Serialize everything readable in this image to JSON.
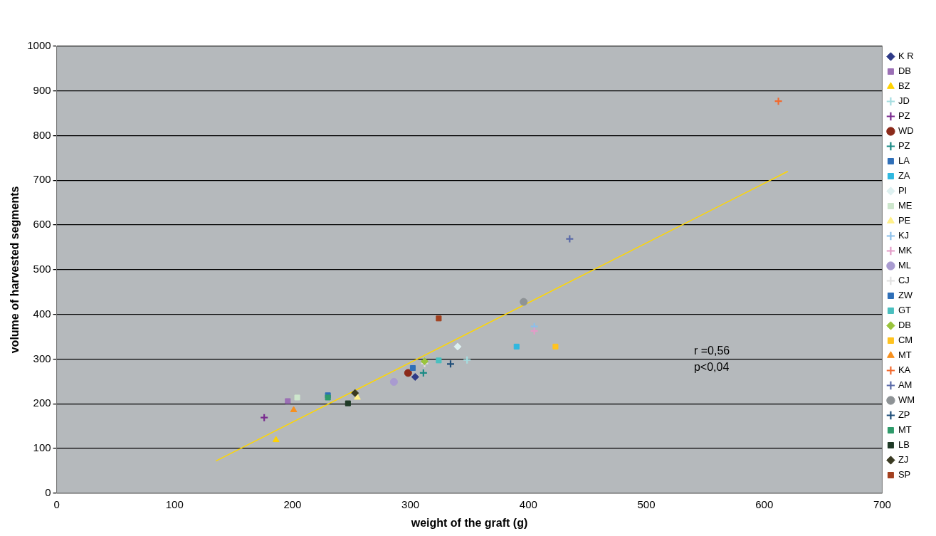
{
  "chart_data": {
    "type": "scatter",
    "xlabel": "weight of the graft (g)",
    "ylabel": "volume of harvested segments",
    "xlim": [
      0,
      700
    ],
    "xticks": [
      0,
      100,
      200,
      300,
      400,
      500,
      600,
      700
    ],
    "ylim": [
      0,
      1000
    ],
    "yticks": [
      0,
      100,
      200,
      300,
      400,
      500,
      600,
      700,
      800,
      900,
      1000
    ],
    "grid": "y",
    "legend": "right",
    "annotations": [
      "r =0,56",
      "p<0,04"
    ],
    "series": [
      {
        "name": "K R",
        "color": "#2e3a87",
        "marker": "diamond",
        "x": [
          304
        ],
        "values": [
          260
        ]
      },
      {
        "name": "DB",
        "color": "#9b6fb5",
        "marker": "square",
        "x": [
          196
        ],
        "values": [
          206
        ]
      },
      {
        "name": "BZ",
        "color": "#ffd200",
        "marker": "triangle",
        "x": [
          186
        ],
        "values": [
          119
        ]
      },
      {
        "name": "JD",
        "color": "#a6dde0",
        "marker": "cross",
        "x": [
          348
        ],
        "values": [
          298
        ]
      },
      {
        "name": "PZ",
        "color": "#7a2b8f",
        "marker": "cross",
        "x": [
          176
        ],
        "values": [
          169
        ]
      },
      {
        "name": "WD",
        "color": "#8b2a1a",
        "marker": "circle",
        "x": [
          298
        ],
        "values": [
          269
        ]
      },
      {
        "name": "PZ",
        "color": "#1a8a85",
        "marker": "cross",
        "x": [
          311
        ],
        "values": [
          269
        ]
      },
      {
        "name": "LA",
        "color": "#2f6fb8",
        "marker": "square",
        "x": [
          302
        ],
        "values": [
          280
        ]
      },
      {
        "name": "ZA",
        "color": "#2fb8e0",
        "marker": "square",
        "x": [
          390
        ],
        "values": [
          328
        ]
      },
      {
        "name": "PI",
        "color": "#ddf0f0",
        "marker": "diamond",
        "x": [
          340
        ],
        "values": [
          328
        ]
      },
      {
        "name": "ME",
        "color": "#cde6cc",
        "marker": "square",
        "x": [
          204
        ],
        "values": [
          214
        ]
      },
      {
        "name": "PE",
        "color": "#fff08a",
        "marker": "triangle",
        "x": [
          255
        ],
        "values": [
          214
        ]
      },
      {
        "name": "KJ",
        "color": "#8cc0ea",
        "marker": "cross",
        "x": [
          405
        ],
        "values": [
          373
        ]
      },
      {
        "name": "MK",
        "color": "#e39cc8",
        "marker": "cross",
        "x": [
          405
        ],
        "values": [
          363
        ]
      },
      {
        "name": "ML",
        "color": "#a99bd0",
        "marker": "circle",
        "x": [
          286
        ],
        "values": [
          249
        ]
      },
      {
        "name": "CJ",
        "color": "#e0e0e0",
        "marker": "cross",
        "x": [
          312
        ],
        "values": [
          290
        ]
      },
      {
        "name": "ZW",
        "color": "#2f6fb8",
        "marker": "square",
        "x": [
          230
        ],
        "values": [
          219
        ]
      },
      {
        "name": "GT",
        "color": "#4abfbf",
        "marker": "square",
        "x": [
          324
        ],
        "values": [
          297
        ]
      },
      {
        "name": "DB",
        "color": "#9ac43c",
        "marker": "diamond",
        "x": [
          312
        ],
        "values": [
          295
        ]
      },
      {
        "name": "CM",
        "color": "#ffc31f",
        "marker": "square",
        "x": [
          423
        ],
        "values": [
          328
        ]
      },
      {
        "name": "MT",
        "color": "#f7901e",
        "marker": "triangle",
        "x": [
          201
        ],
        "values": [
          186
        ]
      },
      {
        "name": "KA",
        "color": "#f26a2e",
        "marker": "cross",
        "x": [
          612
        ],
        "values": [
          877
        ]
      },
      {
        "name": "AM",
        "color": "#5a6aa8",
        "marker": "cross",
        "x": [
          435
        ],
        "values": [
          569
        ]
      },
      {
        "name": "WM",
        "color": "#8e9396",
        "marker": "circle",
        "x": [
          396
        ],
        "values": [
          428
        ]
      },
      {
        "name": "ZP",
        "color": "#1f4e79",
        "marker": "cross",
        "x": [
          334
        ],
        "values": [
          289
        ]
      },
      {
        "name": "MT",
        "color": "#2e9a6a",
        "marker": "square",
        "x": [
          230
        ],
        "values": [
          214
        ]
      },
      {
        "name": "LB",
        "color": "#1f3a26",
        "marker": "square",
        "x": [
          247
        ],
        "values": [
          201
        ]
      },
      {
        "name": "ZJ",
        "color": "#3a3a22",
        "marker": "diamond",
        "x": [
          253
        ],
        "values": [
          224
        ]
      },
      {
        "name": "SP",
        "color": "#a3401f",
        "marker": "square",
        "x": [
          324
        ],
        "values": [
          391
        ]
      },
      {
        "type": "line",
        "color": "#ffd700",
        "marker": "none",
        "x": [
          135,
          620
        ],
        "values": [
          72,
          720
        ]
      }
    ]
  }
}
